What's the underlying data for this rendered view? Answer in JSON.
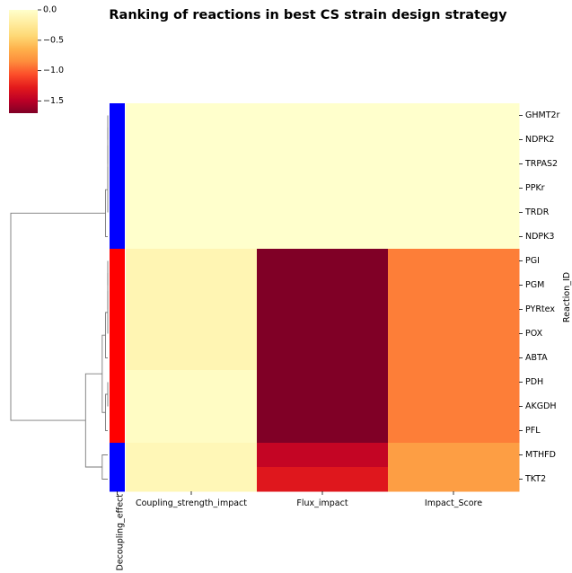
{
  "chart_data": {
    "type": "heatmap",
    "title": "Ranking of reactions in best CS strain design strategy",
    "rows": [
      "GHMT2r",
      "NDPK2",
      "TRPAS2",
      "PPKr",
      "TRDR",
      "NDPK3",
      "PGI",
      "PGM",
      "PYRtex",
      "POX",
      "ABTA",
      "PDH",
      "AKGDH",
      "PFL",
      "MTHFD",
      "TKT2"
    ],
    "columns": [
      "Coupling_strength_impact",
      "Flux_impact",
      "Impact_Score"
    ],
    "values": [
      [
        0.0,
        0.0,
        0.0
      ],
      [
        0.0,
        0.0,
        0.0
      ],
      [
        0.0,
        0.0,
        0.0
      ],
      [
        0.0,
        0.0,
        0.0
      ],
      [
        0.0,
        0.0,
        0.0
      ],
      [
        0.0,
        0.0,
        0.0
      ],
      [
        -0.12,
        -1.7,
        -0.9
      ],
      [
        -0.12,
        -1.7,
        -0.9
      ],
      [
        -0.12,
        -1.7,
        -0.9
      ],
      [
        -0.12,
        -1.7,
        -0.9
      ],
      [
        -0.12,
        -1.7,
        -0.9
      ],
      [
        -0.04,
        -1.7,
        -0.9
      ],
      [
        -0.04,
        -1.7,
        -0.9
      ],
      [
        -0.04,
        -1.7,
        -0.9
      ],
      [
        -0.1,
        -1.45,
        -0.75
      ],
      [
        -0.1,
        -1.3,
        -0.75
      ]
    ],
    "ylabel": "Reaction_ID",
    "row_color_label": "Decoupling_effect",
    "row_colors": [
      "#0000ff",
      "#0000ff",
      "#0000ff",
      "#0000ff",
      "#0000ff",
      "#0000ff",
      "#ff0000",
      "#ff0000",
      "#ff0000",
      "#ff0000",
      "#ff0000",
      "#ff0000",
      "#ff0000",
      "#ff0000",
      "#0000ff",
      "#0000ff"
    ],
    "colorbar": {
      "colormap": "YlOrRd_r",
      "range": [
        -1.7,
        0.0
      ],
      "ticks": [
        0.0,
        -0.5,
        -1.0,
        -1.5
      ],
      "tick_labels": [
        "0.0",
        "−0.5",
        "−1.0",
        "−1.5"
      ]
    },
    "dendrogram": {
      "leaf_order": [
        "GHMT2r",
        "NDPK2",
        "TRPAS2",
        "PPKr",
        "TRDR",
        "NDPK3",
        "PGI",
        "PGM",
        "PYRtex",
        "POX",
        "ABTA",
        "PDH",
        "AKGDH",
        "PFL",
        "MTHFD",
        "TKT2"
      ],
      "merges": [
        [
          0,
          1,
          0.0
        ],
        [
          16,
          2,
          0.0
        ],
        [
          17,
          3,
          0.0
        ],
        [
          18,
          4,
          0.0
        ],
        [
          19,
          5,
          0.08
        ],
        [
          6,
          7,
          0.0
        ],
        [
          21,
          8,
          0.0
        ],
        [
          22,
          9,
          0.0
        ],
        [
          23,
          10,
          0.08
        ],
        [
          11,
          12,
          0.0
        ],
        [
          25,
          13,
          0.08
        ],
        [
          24,
          26,
          0.2
        ],
        [
          14,
          15,
          0.2
        ],
        [
          27,
          28,
          0.8
        ],
        [
          20,
          29,
          3.5
        ]
      ],
      "max_height": 3.5
    }
  }
}
